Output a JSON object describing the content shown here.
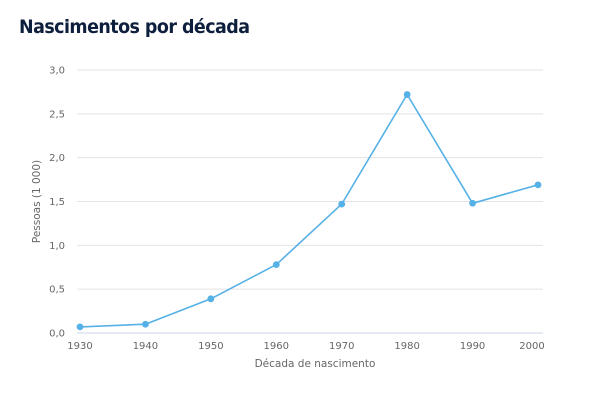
{
  "title": "Nascimentos por década",
  "colors": {
    "series": "#56b1e6",
    "title": "#0d1f3c",
    "axis": "#ccd6eb"
  },
  "chart_data": {
    "type": "line",
    "title": "Nascimentos por década",
    "xlabel": "Década de nascimento",
    "ylabel": "Pessoas (1 000)",
    "categories": [
      "1930",
      "1940",
      "1950",
      "1960",
      "1970",
      "1980",
      "1990",
      "2000"
    ],
    "series": [
      {
        "name": "Nascimentos",
        "values": [
          0.07,
          0.1,
          0.39,
          0.78,
          1.47,
          2.72,
          1.48,
          1.69
        ]
      }
    ],
    "ylim": [
      0,
      3
    ],
    "yticks": [
      "0,0",
      "0,5",
      "1,0",
      "1,5",
      "2,0",
      "2,5",
      "3,0"
    ],
    "ytick_values": [
      0,
      0.5,
      1.0,
      1.5,
      2.0,
      2.5,
      3.0
    ],
    "grid": true,
    "legend": "none"
  }
}
